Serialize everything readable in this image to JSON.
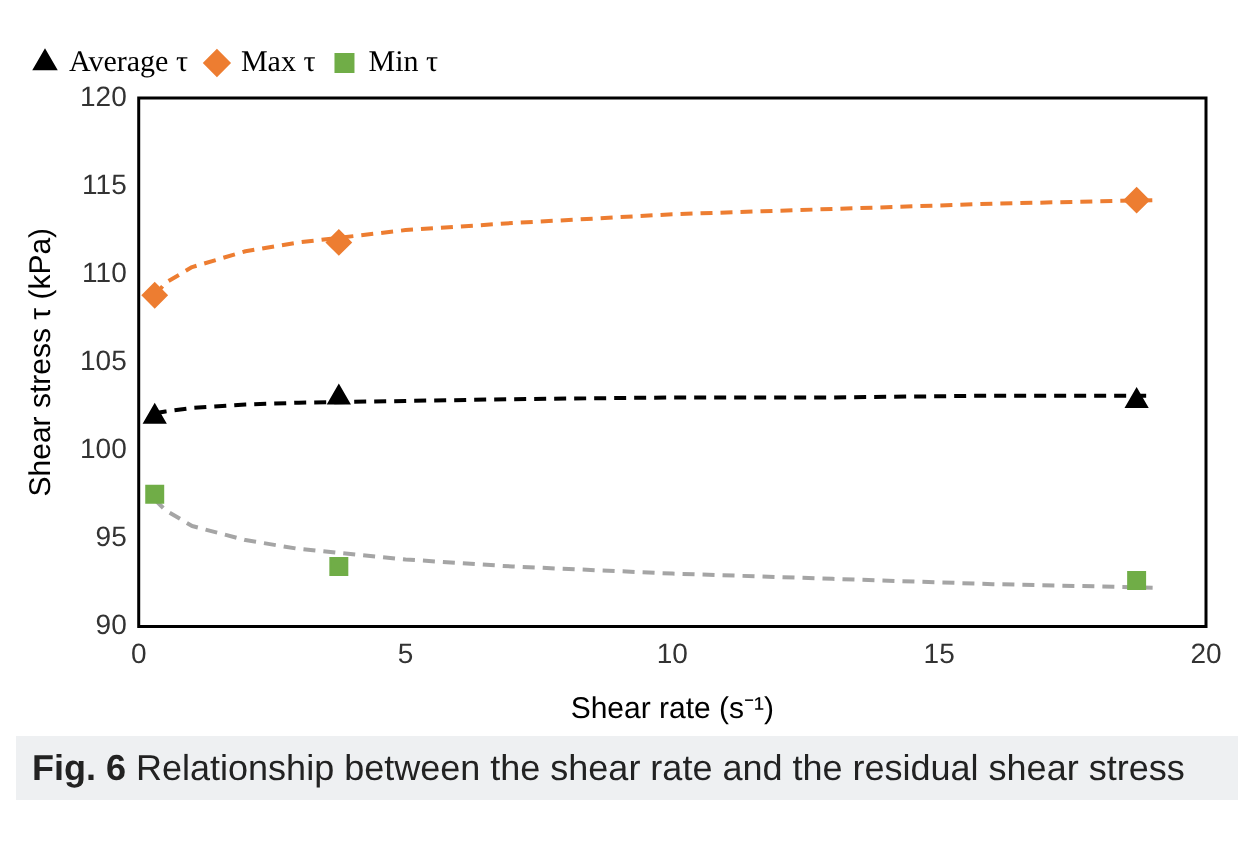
{
  "chart_data": {
    "type": "scatter",
    "xlabel": "Shear rate (s⁻¹)",
    "ylabel": "Shear stress τ (kPa)",
    "xlim": [
      0,
      20
    ],
    "xticks": [
      0,
      5,
      10,
      15,
      20
    ],
    "ylim": [
      90,
      120
    ],
    "yticks": [
      90,
      95,
      100,
      105,
      110,
      115,
      120
    ],
    "grid": false,
    "legend": "top left",
    "series": [
      {
        "name": "Average τ",
        "color": "#000000",
        "marker": "triangle",
        "x": [
          0.3,
          3.75,
          18.7
        ],
        "values": [
          101.9,
          103.0,
          102.8
        ]
      },
      {
        "name": "Max τ",
        "color": "#ed7d31",
        "marker": "diamond",
        "x": [
          0.3,
          3.75,
          18.7
        ],
        "values": [
          108.8,
          111.8,
          114.2
        ]
      },
      {
        "name": "Min τ",
        "color": "#70ad47",
        "marker": "square",
        "x": [
          0.3,
          3.75,
          18.7
        ],
        "values": [
          97.5,
          93.4,
          92.6
        ]
      },
      {
        "type": "line",
        "color": "#000000",
        "line_style": "dashed",
        "marker": "none",
        "x": [
          0.3,
          0.5,
          1,
          2,
          3,
          5,
          7,
          10,
          13,
          16,
          19
        ],
        "values": [
          102.1,
          102.2,
          102.4,
          102.6,
          102.7,
          102.8,
          102.9,
          103.0,
          103.0,
          103.1,
          103.1
        ]
      },
      {
        "type": "line",
        "color": "#ed7d31",
        "line_style": "dashed",
        "marker": "none",
        "x": [
          0.3,
          0.5,
          1,
          2,
          3,
          5,
          7,
          10,
          13,
          16,
          19
        ],
        "values": [
          108.8,
          109.5,
          110.4,
          111.3,
          111.8,
          112.5,
          112.9,
          113.4,
          113.7,
          114.0,
          114.2
        ]
      },
      {
        "type": "line",
        "color": "#a5a5a5",
        "line_style": "dashed",
        "marker": "none",
        "x": [
          0.3,
          0.5,
          1,
          2,
          3,
          5,
          7,
          10,
          13,
          16,
          19
        ],
        "values": [
          97.2,
          96.6,
          95.7,
          94.9,
          94.4,
          93.8,
          93.4,
          93.0,
          92.7,
          92.4,
          92.2
        ]
      }
    ],
    "annotations": [
      "Fig. 6 Relationship between the shear rate and the residual shear stress"
    ]
  }
}
